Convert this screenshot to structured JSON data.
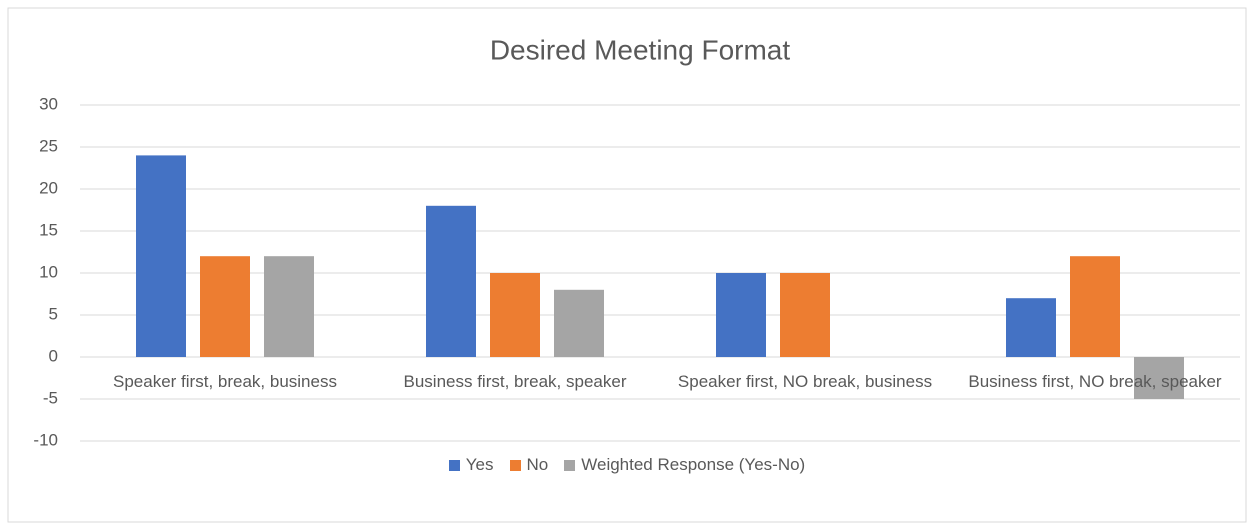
{
  "chart_data": {
    "type": "bar",
    "title": "Desired Meeting Format",
    "categories": [
      "Speaker first, break, business",
      "Business first, break, speaker",
      "Speaker first, NO break, business",
      "Business first, NO break, speaker"
    ],
    "series": [
      {
        "name": "Yes",
        "color": "#4472c4",
        "values": [
          24,
          18,
          10,
          7
        ]
      },
      {
        "name": "No",
        "color": "#ed7d31",
        "values": [
          12,
          10,
          10,
          12
        ]
      },
      {
        "name": "Weighted Response (Yes-No)",
        "color": "#a5a5a5",
        "values": [
          12,
          8,
          0,
          -5
        ]
      }
    ],
    "ylim": [
      -10,
      30
    ],
    "yticks": [
      -10,
      -5,
      0,
      5,
      10,
      15,
      20,
      25,
      30
    ],
    "grid": true,
    "legend": "bottom"
  }
}
